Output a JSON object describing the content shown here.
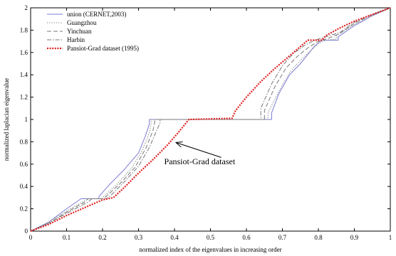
{
  "chart_data": {
    "type": "line",
    "title": "",
    "xlabel": "normalized index of the eigenvalues in increasing order",
    "ylabel": "normalized laplacian eigenvalue",
    "xlim": [
      0,
      1
    ],
    "ylim": [
      0,
      2
    ],
    "xticks": [
      0,
      0.1,
      0.2,
      0.3,
      0.4,
      0.5,
      0.6,
      0.7,
      0.8,
      0.9,
      1
    ],
    "xtick_labels": [
      "0",
      "0.1",
      "0.2",
      "0.3",
      "0.4",
      "0.5",
      "0.6",
      "0.7",
      "0.8",
      "0.9",
      "1"
    ],
    "yticks": [
      0,
      0.2,
      0.4,
      0.6,
      0.8,
      1,
      1.2,
      1.4,
      1.6,
      1.8,
      2
    ],
    "ytick_labels": [
      "0",
      "0.2",
      "0.4",
      "0.6",
      "0.8",
      "1",
      "1.2",
      "1.4",
      "1.6",
      "1.8",
      "2"
    ],
    "grid": false,
    "legend_position": "top-left",
    "series": [
      {
        "name": "union (CERNET,2003)",
        "color": "#7b7bd6",
        "dash": "solid",
        "x": [
          0,
          0.05,
          0.1,
          0.14,
          0.14,
          0.19,
          0.19,
          0.22,
          0.26,
          0.3,
          0.32,
          0.33,
          0.33,
          0.67,
          0.67,
          0.69,
          0.72,
          0.75,
          0.77,
          0.79,
          0.81,
          0.81,
          0.855,
          0.855,
          0.9,
          0.95,
          1
        ],
        "y": [
          0,
          0.08,
          0.2,
          0.29,
          0.29,
          0.29,
          0.31,
          0.42,
          0.55,
          0.7,
          0.86,
          0.96,
          1.0,
          1.0,
          1.06,
          1.23,
          1.4,
          1.5,
          1.58,
          1.66,
          1.71,
          1.71,
          1.71,
          1.74,
          1.84,
          1.93,
          2
        ]
      },
      {
        "name": "Guangzhou",
        "color": "#777777",
        "dash": "dotted",
        "x": [
          0,
          0.05,
          0.1,
          0.15,
          0.15,
          0.2,
          0.2,
          0.24,
          0.28,
          0.31,
          0.33,
          0.335,
          0.335,
          0.66,
          0.66,
          0.69,
          0.72,
          0.75,
          0.78,
          0.8,
          0.82,
          0.82,
          0.85,
          0.85,
          0.9,
          0.95,
          1
        ],
        "y": [
          0,
          0.08,
          0.18,
          0.27,
          0.29,
          0.29,
          0.3,
          0.42,
          0.56,
          0.72,
          0.88,
          0.96,
          1.0,
          1.0,
          1.06,
          1.25,
          1.42,
          1.53,
          1.62,
          1.68,
          1.71,
          1.71,
          1.72,
          1.75,
          1.85,
          1.93,
          2
        ]
      },
      {
        "name": "Yinchuan",
        "color": "#777777",
        "dash": "dashed",
        "x": [
          0,
          0.05,
          0.1,
          0.15,
          0.16,
          0.2,
          0.21,
          0.25,
          0.29,
          0.32,
          0.34,
          0.345,
          0.345,
          0.65,
          0.65,
          0.68,
          0.71,
          0.74,
          0.77,
          0.8,
          0.82,
          0.83,
          0.86,
          0.9,
          0.95,
          1
        ],
        "y": [
          0,
          0.07,
          0.17,
          0.26,
          0.29,
          0.29,
          0.31,
          0.43,
          0.57,
          0.74,
          0.9,
          0.97,
          1.0,
          1.0,
          1.08,
          1.3,
          1.46,
          1.56,
          1.64,
          1.7,
          1.72,
          1.73,
          1.77,
          1.86,
          1.94,
          2
        ]
      },
      {
        "name": "Harbin",
        "color": "#777777",
        "dash": "dashdot",
        "x": [
          0,
          0.05,
          0.1,
          0.16,
          0.17,
          0.21,
          0.22,
          0.26,
          0.3,
          0.33,
          0.35,
          0.36,
          0.36,
          0.64,
          0.64,
          0.67,
          0.7,
          0.73,
          0.76,
          0.79,
          0.81,
          0.82,
          0.86,
          0.9,
          0.95,
          1
        ],
        "y": [
          0,
          0.07,
          0.16,
          0.26,
          0.29,
          0.29,
          0.31,
          0.44,
          0.58,
          0.75,
          0.9,
          0.97,
          1.0,
          1.0,
          1.1,
          1.32,
          1.48,
          1.59,
          1.66,
          1.71,
          1.73,
          1.74,
          1.78,
          1.87,
          1.94,
          2
        ]
      },
      {
        "name": "Pansiot-Grad dataset (1995)",
        "color": "#e02020",
        "dash": "heavydot",
        "x": [
          0,
          0.05,
          0.1,
          0.15,
          0.2,
          0.23,
          0.26,
          0.3,
          0.34,
          0.38,
          0.41,
          0.43,
          0.44,
          0.56,
          0.57,
          0.6,
          0.64,
          0.68,
          0.72,
          0.76,
          0.77,
          0.81,
          0.82,
          0.86,
          0.9,
          0.95,
          1
        ],
        "y": [
          0,
          0.06,
          0.14,
          0.21,
          0.28,
          0.3,
          0.39,
          0.52,
          0.64,
          0.77,
          0.88,
          0.96,
          1.0,
          1.01,
          1.08,
          1.2,
          1.34,
          1.46,
          1.57,
          1.68,
          1.71,
          1.71,
          1.75,
          1.82,
          1.88,
          1.94,
          2
        ]
      }
    ],
    "annotation": {
      "text": "Pansiot-Grad dataset",
      "arrow_tip": [
        0.4,
        0.8
      ],
      "arrow_tail": [
        0.53,
        0.66
      ],
      "text_anchor": [
        0.47,
        0.6
      ]
    }
  }
}
